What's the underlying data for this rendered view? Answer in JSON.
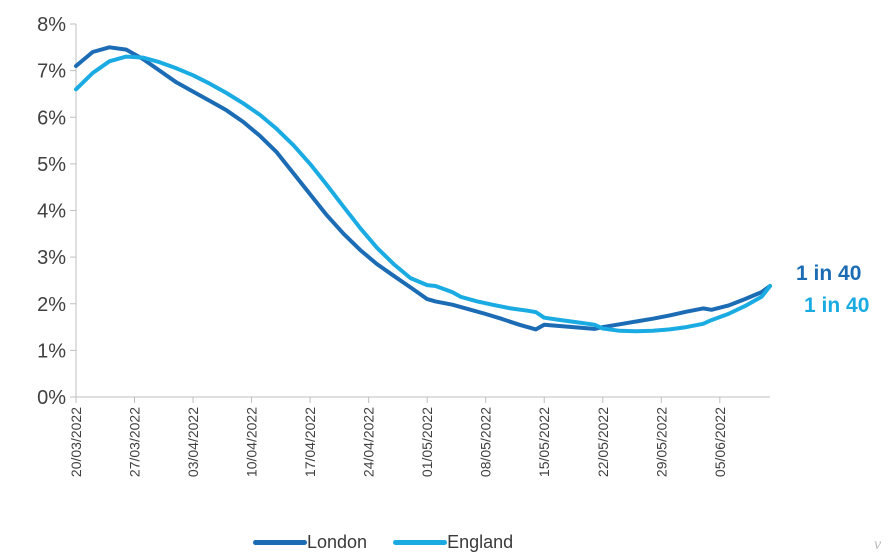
{
  "colors": {
    "London": "#1b6cb4",
    "England": "#1aabe3",
    "axis": "#bfbfbf",
    "text": "#404040"
  },
  "chart_data": {
    "type": "line",
    "title": "",
    "xlabel": "",
    "ylabel": "",
    "x_range": [
      "20/03/2022",
      "11/06/2022"
    ],
    "ylim": [
      0,
      8
    ],
    "y_ticks": [
      "0%",
      "1%",
      "2%",
      "3%",
      "4%",
      "5%",
      "6%",
      "7%",
      "8%"
    ],
    "x_ticks": [
      "20/03/2022",
      "27/03/2022",
      "03/04/2022",
      "10/04/2022",
      "17/04/2022",
      "24/04/2022",
      "01/05/2022",
      "08/05/2022",
      "15/05/2022",
      "22/05/2022",
      "29/05/2022",
      "05/06/2022"
    ],
    "grid": false,
    "legend_position": "bottom",
    "series": [
      {
        "name": "London",
        "points": [
          [
            "20/03/2022",
            7.1
          ],
          [
            "22/03/2022",
            7.4
          ],
          [
            "24/03/2022",
            7.5
          ],
          [
            "26/03/2022",
            7.45
          ],
          [
            "28/03/2022",
            7.25
          ],
          [
            "30/03/2022",
            7.0
          ],
          [
            "01/04/2022",
            6.75
          ],
          [
            "03/04/2022",
            6.55
          ],
          [
            "05/04/2022",
            6.35
          ],
          [
            "07/04/2022",
            6.15
          ],
          [
            "09/04/2022",
            5.9
          ],
          [
            "11/04/2022",
            5.6
          ],
          [
            "13/04/2022",
            5.25
          ],
          [
            "15/04/2022",
            4.8
          ],
          [
            "17/04/2022",
            4.35
          ],
          [
            "19/04/2022",
            3.9
          ],
          [
            "21/04/2022",
            3.5
          ],
          [
            "23/04/2022",
            3.15
          ],
          [
            "25/04/2022",
            2.85
          ],
          [
            "27/04/2022",
            2.6
          ],
          [
            "29/04/2022",
            2.35
          ],
          [
            "01/05/2022",
            2.1
          ],
          [
            "02/05/2022",
            2.05
          ],
          [
            "04/05/2022",
            1.98
          ],
          [
            "06/05/2022",
            1.88
          ],
          [
            "08/05/2022",
            1.78
          ],
          [
            "10/05/2022",
            1.67
          ],
          [
            "12/05/2022",
            1.55
          ],
          [
            "14/05/2022",
            1.45
          ],
          [
            "15/05/2022",
            1.55
          ],
          [
            "17/05/2022",
            1.52
          ],
          [
            "19/05/2022",
            1.49
          ],
          [
            "21/05/2022",
            1.46
          ],
          [
            "22/05/2022",
            1.5
          ],
          [
            "24/05/2022",
            1.56
          ],
          [
            "26/05/2022",
            1.62
          ],
          [
            "28/05/2022",
            1.68
          ],
          [
            "30/05/2022",
            1.75
          ],
          [
            "01/06/2022",
            1.83
          ],
          [
            "03/06/2022",
            1.9
          ],
          [
            "04/06/2022",
            1.87
          ],
          [
            "06/06/2022",
            1.96
          ],
          [
            "08/06/2022",
            2.1
          ],
          [
            "10/06/2022",
            2.25
          ],
          [
            "11/06/2022",
            2.38
          ]
        ]
      },
      {
        "name": "England",
        "points": [
          [
            "20/03/2022",
            6.6
          ],
          [
            "22/03/2022",
            6.95
          ],
          [
            "24/03/2022",
            7.2
          ],
          [
            "26/03/2022",
            7.3
          ],
          [
            "28/03/2022",
            7.28
          ],
          [
            "30/03/2022",
            7.18
          ],
          [
            "01/04/2022",
            7.05
          ],
          [
            "03/04/2022",
            6.9
          ],
          [
            "05/04/2022",
            6.72
          ],
          [
            "07/04/2022",
            6.52
          ],
          [
            "09/04/2022",
            6.3
          ],
          [
            "11/04/2022",
            6.05
          ],
          [
            "13/04/2022",
            5.75
          ],
          [
            "15/04/2022",
            5.4
          ],
          [
            "17/04/2022",
            5.0
          ],
          [
            "19/04/2022",
            4.55
          ],
          [
            "21/04/2022",
            4.08
          ],
          [
            "23/04/2022",
            3.62
          ],
          [
            "25/04/2022",
            3.2
          ],
          [
            "27/04/2022",
            2.85
          ],
          [
            "29/04/2022",
            2.55
          ],
          [
            "01/05/2022",
            2.4
          ],
          [
            "02/05/2022",
            2.38
          ],
          [
            "04/05/2022",
            2.25
          ],
          [
            "05/05/2022",
            2.15
          ],
          [
            "07/05/2022",
            2.05
          ],
          [
            "09/05/2022",
            1.97
          ],
          [
            "11/05/2022",
            1.9
          ],
          [
            "13/05/2022",
            1.85
          ],
          [
            "14/05/2022",
            1.82
          ],
          [
            "15/05/2022",
            1.7
          ],
          [
            "17/05/2022",
            1.65
          ],
          [
            "19/05/2022",
            1.6
          ],
          [
            "21/05/2022",
            1.55
          ],
          [
            "22/05/2022",
            1.47
          ],
          [
            "24/05/2022",
            1.42
          ],
          [
            "26/05/2022",
            1.41
          ],
          [
            "28/05/2022",
            1.42
          ],
          [
            "30/05/2022",
            1.45
          ],
          [
            "01/06/2022",
            1.5
          ],
          [
            "03/06/2022",
            1.57
          ],
          [
            "04/06/2022",
            1.65
          ],
          [
            "06/06/2022",
            1.78
          ],
          [
            "08/06/2022",
            1.95
          ],
          [
            "10/06/2022",
            2.15
          ],
          [
            "11/06/2022",
            2.38
          ]
        ]
      }
    ]
  },
  "annotations": [
    {
      "series": "London",
      "text": "1 in 40"
    },
    {
      "series": "England",
      "text": "1 in 40"
    }
  ],
  "legend": [
    {
      "label": "London"
    },
    {
      "label": "England"
    }
  ],
  "corner_mark": "v"
}
